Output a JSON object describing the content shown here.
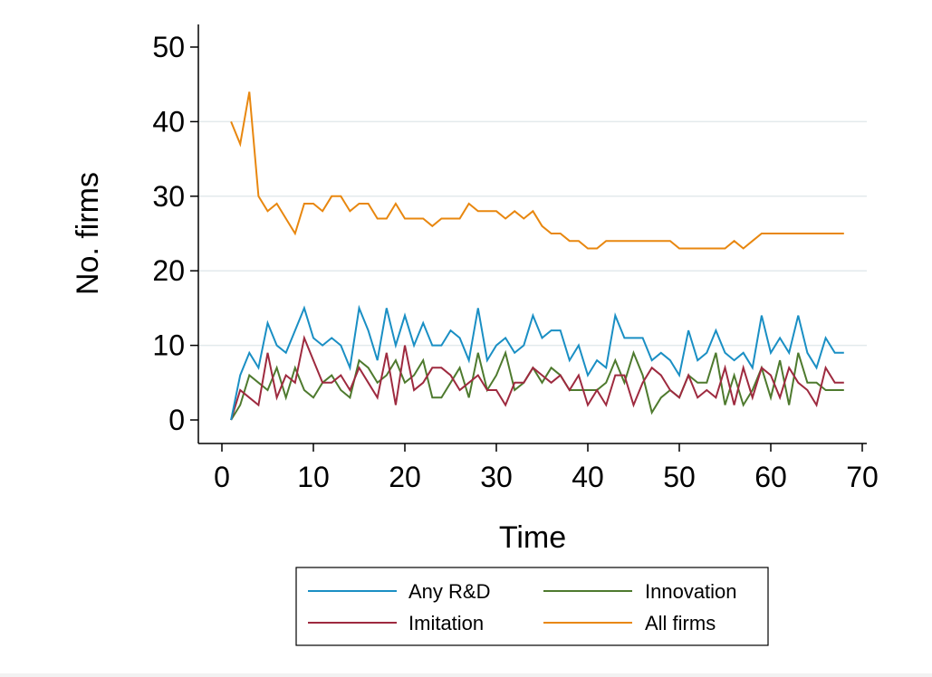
{
  "chart_data": {
    "type": "line",
    "title": "",
    "xlabel": "Time",
    "ylabel": "No. firms",
    "xlim": [
      0,
      70
    ],
    "ylim": [
      0,
      50
    ],
    "xticks": [
      "0",
      "10",
      "20",
      "30",
      "40",
      "50",
      "60",
      "70"
    ],
    "yticks": [
      "0",
      "10",
      "20",
      "30",
      "40",
      "50"
    ],
    "grid": "horizontal",
    "legend_position": "bottom",
    "x": [
      1,
      2,
      3,
      4,
      5,
      6,
      7,
      8,
      9,
      10,
      11,
      12,
      13,
      14,
      15,
      16,
      17,
      18,
      19,
      20,
      21,
      22,
      23,
      24,
      25,
      26,
      27,
      28,
      29,
      30,
      31,
      32,
      33,
      34,
      35,
      36,
      37,
      38,
      39,
      40,
      41,
      42,
      43,
      44,
      45,
      46,
      47,
      48,
      49,
      50,
      51,
      52,
      53,
      54,
      55,
      56,
      57,
      58,
      59,
      60,
      61,
      62,
      63,
      64,
      65,
      66,
      67,
      68
    ],
    "series": [
      {
        "name": "Any R&D",
        "color": "#1a8fc4",
        "values": [
          0,
          6,
          9,
          7,
          13,
          10,
          9,
          12,
          15,
          11,
          10,
          11,
          10,
          7,
          15,
          12,
          8,
          15,
          10,
          14,
          10,
          13,
          10,
          10,
          12,
          11,
          8,
          15,
          8,
          10,
          11,
          9,
          10,
          14,
          11,
          12,
          12,
          8,
          10,
          6,
          8,
          7,
          14,
          11,
          11,
          11,
          8,
          9,
          8,
          6,
          12,
          8,
          9,
          12,
          9,
          8,
          9,
          7,
          14,
          9,
          11,
          9,
          14,
          9,
          7,
          11,
          9,
          9
        ]
      },
      {
        "name": "Innovation",
        "color": "#4e7a2e",
        "values": [
          0,
          2,
          6,
          5,
          4,
          7,
          3,
          7,
          4,
          3,
          5,
          6,
          4,
          3,
          8,
          7,
          5,
          6,
          8,
          5,
          6,
          8,
          3,
          3,
          5,
          7,
          3,
          9,
          4,
          6,
          9,
          4,
          5,
          7,
          5,
          7,
          6,
          4,
          4,
          4,
          4,
          5,
          8,
          5,
          9,
          6,
          1,
          3,
          4,
          3,
          6,
          5,
          5,
          9,
          2,
          6,
          2,
          4,
          7,
          3,
          8,
          2,
          9,
          5,
          5,
          4,
          4,
          4
        ]
      },
      {
        "name": "Imitation",
        "color": "#9e2a3f",
        "values": [
          0,
          4,
          3,
          2,
          9,
          3,
          6,
          5,
          11,
          8,
          5,
          5,
          6,
          4,
          7,
          5,
          3,
          9,
          2,
          10,
          4,
          5,
          7,
          7,
          6,
          4,
          5,
          6,
          4,
          4,
          2,
          5,
          5,
          7,
          6,
          5,
          6,
          4,
          6,
          2,
          4,
          2,
          6,
          6,
          2,
          5,
          7,
          6,
          4,
          3,
          6,
          3,
          4,
          3,
          7,
          2,
          7,
          3,
          7,
          6,
          3,
          7,
          5,
          4,
          2,
          7,
          5,
          5
        ]
      },
      {
        "name": "All firms",
        "color": "#e8870f",
        "values": [
          40,
          37,
          44,
          30,
          28,
          29,
          27,
          25,
          29,
          29,
          28,
          30,
          30,
          28,
          29,
          29,
          27,
          27,
          29,
          27,
          27,
          27,
          26,
          27,
          27,
          27,
          29,
          28,
          28,
          28,
          27,
          28,
          27,
          28,
          26,
          25,
          25,
          24,
          24,
          23,
          23,
          24,
          24,
          24,
          24,
          24,
          24,
          24,
          24,
          23,
          23,
          23,
          23,
          23,
          23,
          24,
          23,
          24,
          25,
          25,
          25,
          25,
          25,
          25,
          25,
          25,
          25,
          25
        ]
      }
    ]
  },
  "legend": {
    "items": [
      "Any R&D",
      "Innovation",
      "Imitation",
      "All firms"
    ]
  }
}
